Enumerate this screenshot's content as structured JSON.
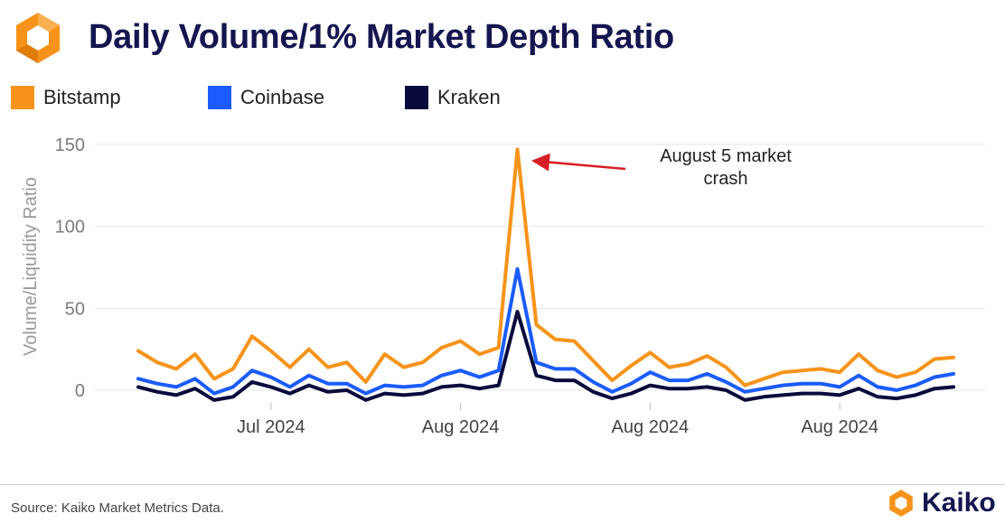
{
  "header": {
    "title": "Daily Volume/1% Market Depth Ratio",
    "logo_icon": "kaiko-hexagon-icon"
  },
  "footer": {
    "source": "Source: Kaiko Market Metrics Data.",
    "brand": "Kaiko"
  },
  "colors": {
    "Bitstamp": "#f7931a",
    "Coinbase": "#1a5cff",
    "Kraken": "#0b0a3c",
    "title": "#15154f"
  },
  "chart_data": {
    "type": "line",
    "title": "Daily Volume/1% Market Depth Ratio",
    "ylabel": "Volume/Liquidity Ratio",
    "xlabel": "",
    "ylim": [
      0,
      150
    ],
    "yticks": [
      0,
      50,
      100,
      150
    ],
    "xtick_labels": [
      {
        "label": "Jul 2024",
        "index": 7
      },
      {
        "label": "Aug 2024",
        "index": 17
      },
      {
        "label": "Aug 2024",
        "index": 27
      },
      {
        "label": "Aug 2024",
        "index": 37
      }
    ],
    "legend_position": "top-left",
    "grid": true,
    "annotation": {
      "text": [
        "August 5 market",
        "crash"
      ],
      "index": 19,
      "series": "Bitstamp"
    },
    "series": [
      {
        "name": "Bitstamp",
        "values": [
          24,
          17,
          13,
          22,
          7,
          13,
          33,
          24,
          14,
          25,
          14,
          17,
          5,
          22,
          14,
          17,
          26,
          30,
          22,
          26,
          147,
          40,
          31,
          30,
          18,
          6,
          15,
          23,
          14,
          16,
          21,
          14,
          3,
          7,
          11,
          12,
          13,
          11,
          22,
          12,
          8,
          11,
          19,
          20
        ]
      },
      {
        "name": "Coinbase",
        "values": [
          7,
          4,
          2,
          7,
          -2,
          2,
          12,
          8,
          2,
          9,
          4,
          4,
          -2,
          3,
          2,
          3,
          9,
          12,
          8,
          12,
          74,
          17,
          13,
          13,
          5,
          -1,
          4,
          11,
          6,
          6,
          10,
          5,
          -1,
          1,
          3,
          4,
          4,
          2,
          9,
          2,
          0,
          3,
          8,
          10
        ]
      },
      {
        "name": "Kraken",
        "values": [
          2,
          -1,
          -3,
          1,
          -6,
          -4,
          5,
          2,
          -2,
          3,
          -1,
          0,
          -6,
          -2,
          -3,
          -2,
          2,
          3,
          1,
          3,
          48,
          9,
          6,
          6,
          -1,
          -5,
          -2,
          3,
          1,
          1,
          2,
          0,
          -6,
          -4,
          -3,
          -2,
          -2,
          -3,
          1,
          -4,
          -5,
          -3,
          1,
          2
        ]
      }
    ]
  }
}
